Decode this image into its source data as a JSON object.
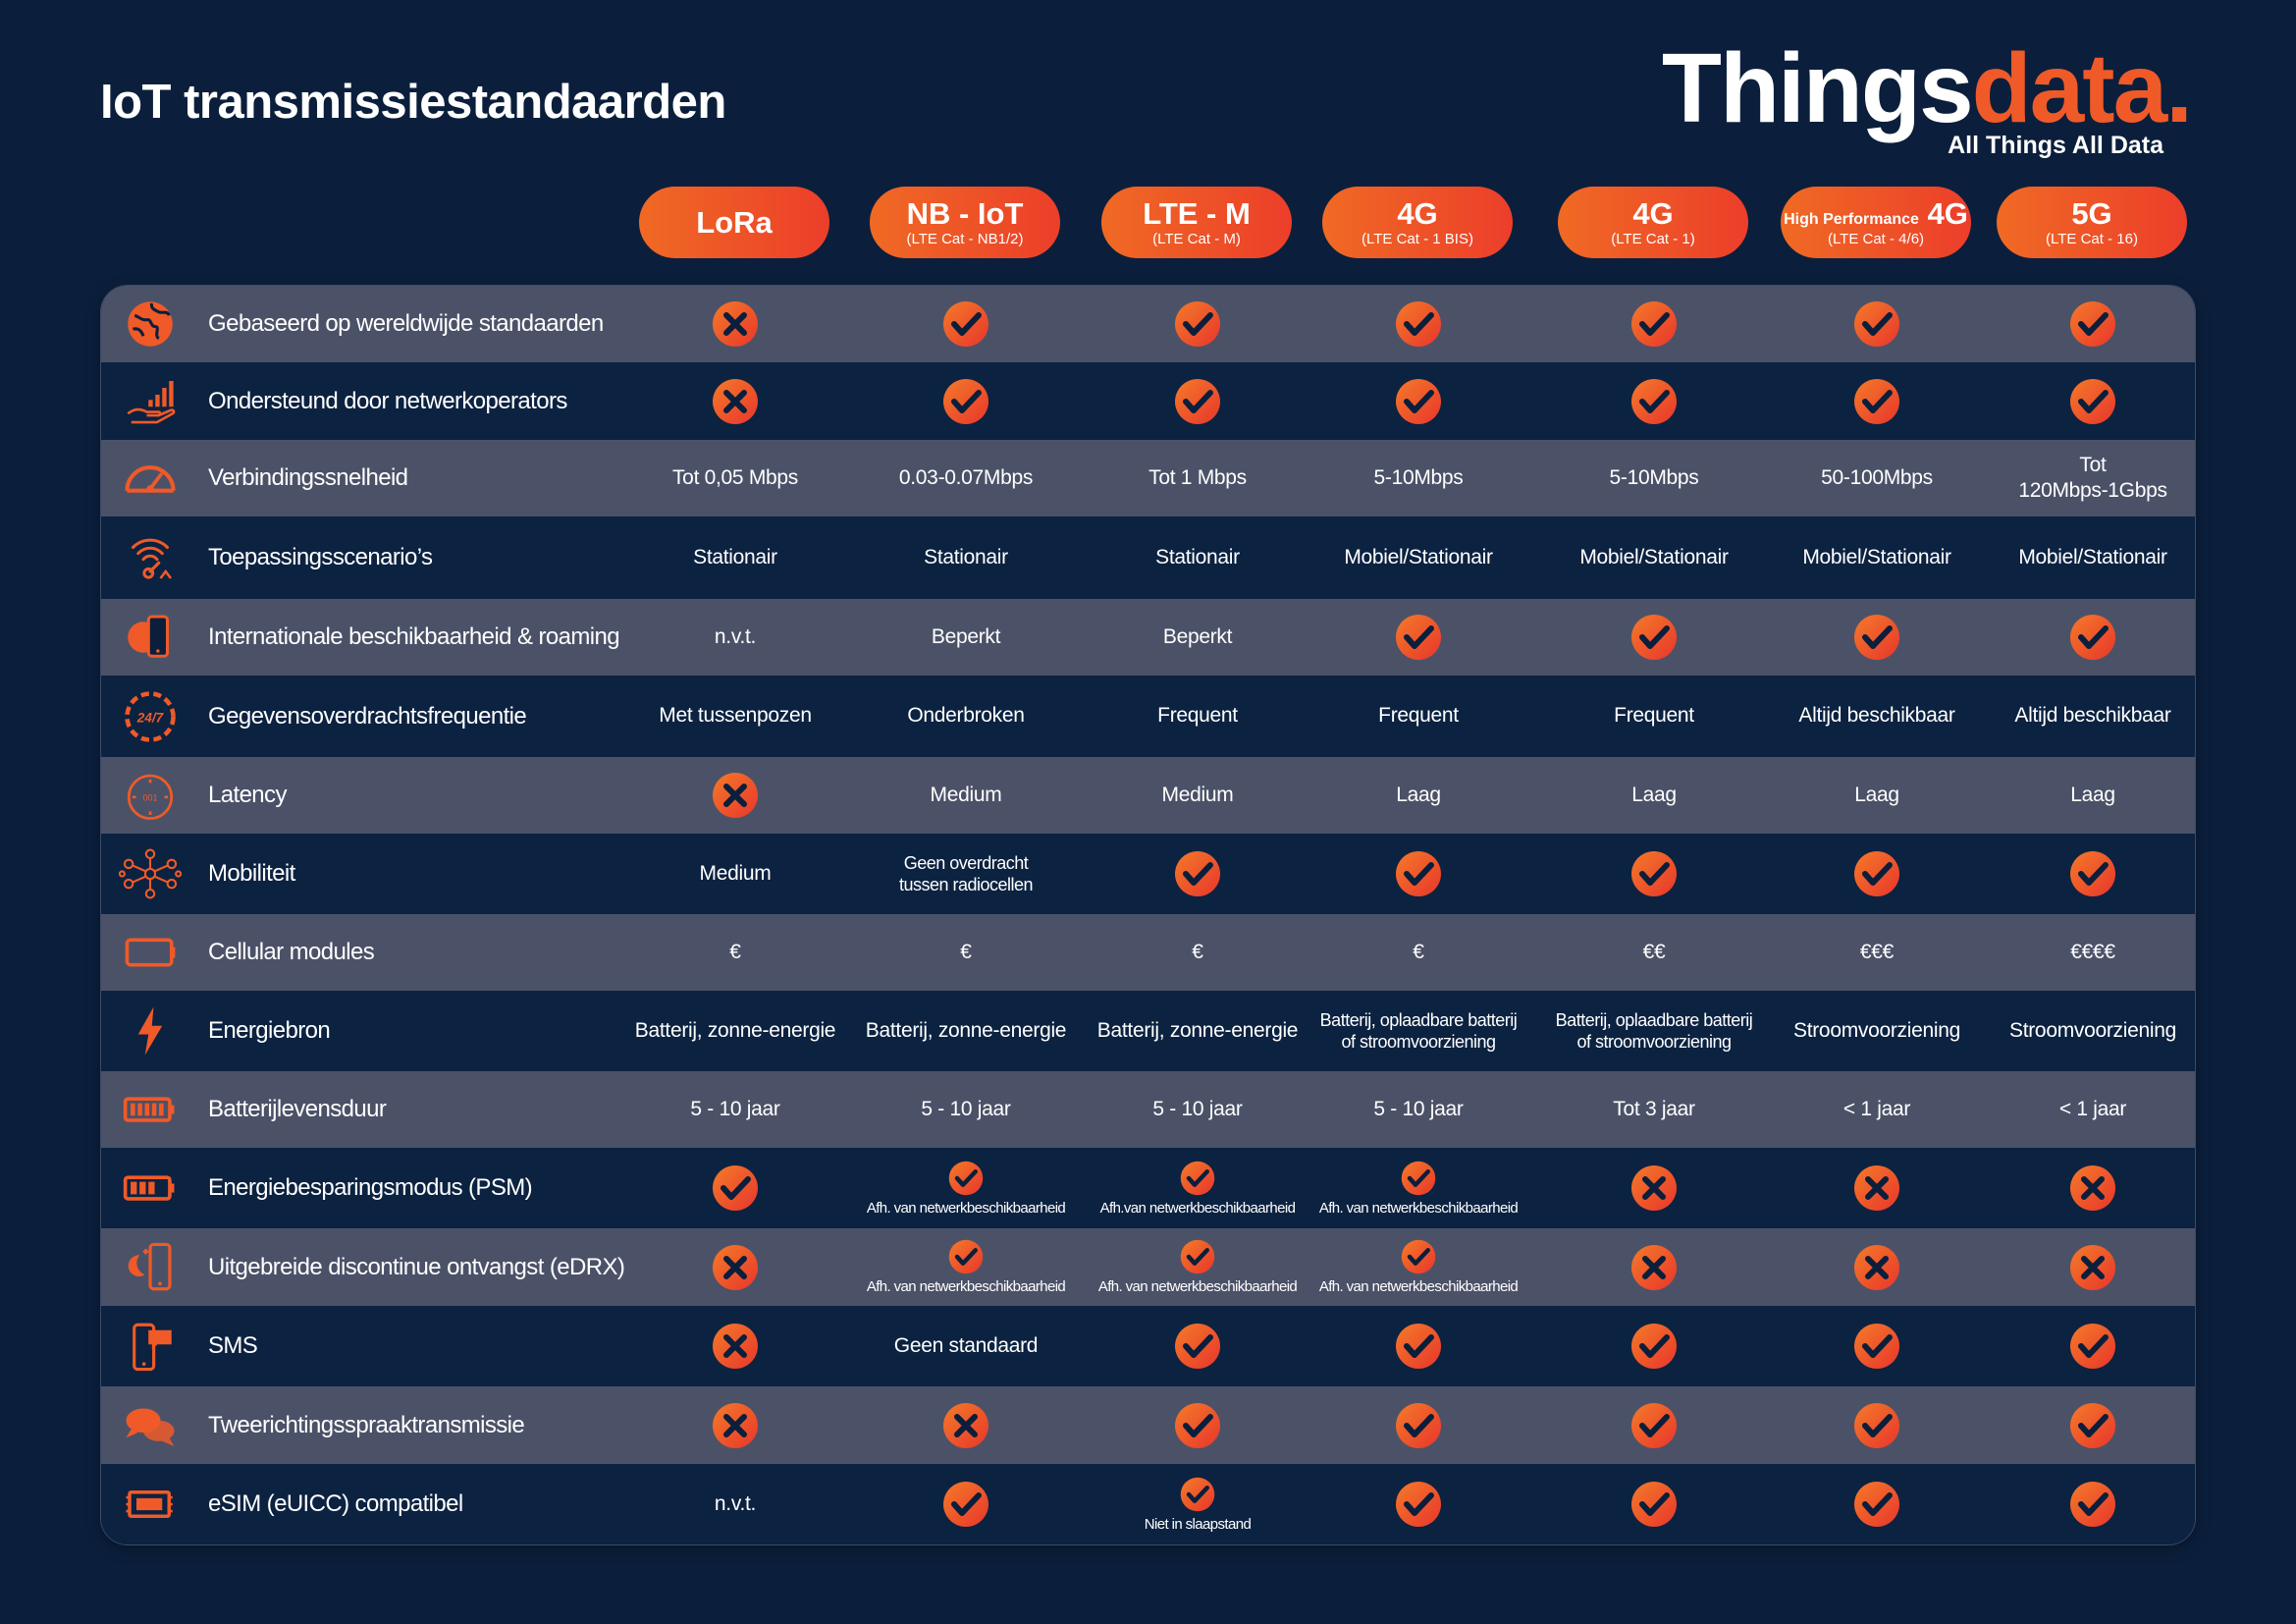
{
  "title": "IoT transmissiestandaarden",
  "logo": {
    "part1": "Things",
    "part2": "data.",
    "tagline": "All Things All Data"
  },
  "colors": {
    "background": "#0b1f3c",
    "accent": "#f05a28",
    "row_alt": "#4b5268",
    "row_plain": "#0c2241"
  },
  "columns": [
    {
      "main": "LoRa",
      "prefix": "",
      "sub": ""
    },
    {
      "main": "NB - IoT",
      "prefix": "",
      "sub": "(LTE Cat - NB1/2)"
    },
    {
      "main": "LTE - M",
      "prefix": "",
      "sub": "(LTE Cat - M)"
    },
    {
      "main": "4G",
      "prefix": "",
      "sub": "(LTE Cat - 1 BIS)"
    },
    {
      "main": "4G",
      "prefix": "",
      "sub": "(LTE Cat - 1)"
    },
    {
      "main": "4G",
      "prefix": "High Performance",
      "sub": "(LTE Cat - 4/6)"
    },
    {
      "main": "5G",
      "prefix": "",
      "sub": "(LTE Cat - 16)"
    }
  ],
  "rows": [
    {
      "label": "Gebaseerd op wereldwijde standaarden",
      "icon": "globe-icon",
      "cells": [
        {
          "mark": "cross"
        },
        {
          "mark": "check"
        },
        {
          "mark": "check"
        },
        {
          "mark": "check"
        },
        {
          "mark": "check"
        },
        {
          "mark": "check"
        },
        {
          "mark": "check"
        }
      ]
    },
    {
      "label": "Ondersteund door netwerkoperators",
      "icon": "signal-hand-icon",
      "cells": [
        {
          "mark": "cross"
        },
        {
          "mark": "check"
        },
        {
          "mark": "check"
        },
        {
          "mark": "check"
        },
        {
          "mark": "check"
        },
        {
          "mark": "check"
        },
        {
          "mark": "check"
        }
      ]
    },
    {
      "label": "Verbindingssnelheid",
      "icon": "speedometer-icon",
      "cells": [
        {
          "text": "Tot 0,05 Mbps"
        },
        {
          "text": "0.03-0.07Mbps"
        },
        {
          "text": "Tot 1 Mbps"
        },
        {
          "text": "5-10Mbps"
        },
        {
          "text": "5-10Mbps"
        },
        {
          "text": "50-100Mbps"
        },
        {
          "text": "Tot\n120Mbps-1Gbps"
        }
      ]
    },
    {
      "label": "Toepassingsscenario’s",
      "icon": "wireless-sensor-icon",
      "cells": [
        {
          "text": "Stationair"
        },
        {
          "text": "Stationair"
        },
        {
          "text": "Stationair"
        },
        {
          "text": "Mobiel/Stationair"
        },
        {
          "text": "Mobiel/Stationair"
        },
        {
          "text": "Mobiel/Stationair"
        },
        {
          "text": "Mobiel/Stationair"
        }
      ]
    },
    {
      "label": "Internationale beschikbaarheid & roaming",
      "icon": "phone-globe-icon",
      "cells": [
        {
          "text": "n.v.t."
        },
        {
          "text": "Beperkt"
        },
        {
          "text": "Beperkt"
        },
        {
          "mark": "check"
        },
        {
          "mark": "check"
        },
        {
          "mark": "check"
        },
        {
          "mark": "check"
        }
      ]
    },
    {
      "label": "Gegevensoverdrachtsfrequentie",
      "icon": "clock-24-7-icon",
      "icon_text": "24/7",
      "cells": [
        {
          "text": "Met tussenpozen"
        },
        {
          "text": "Onderbroken"
        },
        {
          "text": "Frequent"
        },
        {
          "text": "Frequent"
        },
        {
          "text": "Frequent"
        },
        {
          "text": "Altijd beschikbaar"
        },
        {
          "text": "Altijd beschikbaar"
        }
      ]
    },
    {
      "label": "Latency",
      "icon": "stopwatch-icon",
      "icon_text": "001",
      "cells": [
        {
          "mark": "cross"
        },
        {
          "text": "Medium"
        },
        {
          "text": "Medium"
        },
        {
          "text": "Laag"
        },
        {
          "text": "Laag"
        },
        {
          "text": "Laag"
        },
        {
          "text": "Laag"
        }
      ]
    },
    {
      "label": "Mobiliteit",
      "icon": "network-nodes-icon",
      "cells": [
        {
          "text": "Medium"
        },
        {
          "text": "Geen overdracht\ntussen radiocellen",
          "small": true
        },
        {
          "mark": "check"
        },
        {
          "mark": "check"
        },
        {
          "mark": "check"
        },
        {
          "mark": "check"
        },
        {
          "mark": "check"
        }
      ]
    },
    {
      "label": "Cellular modules",
      "icon": "module-icon",
      "cells": [
        {
          "text": "€"
        },
        {
          "text": "€"
        },
        {
          "text": "€"
        },
        {
          "text": "€"
        },
        {
          "text": "€€"
        },
        {
          "text": "€€€"
        },
        {
          "text": "€€€€"
        }
      ]
    },
    {
      "label": "Energiebron",
      "icon": "lightning-icon",
      "cells": [
        {
          "text": "Batterij, zonne-energie"
        },
        {
          "text": "Batterij, zonne-energie"
        },
        {
          "text": "Batterij, zonne-energie"
        },
        {
          "text": "Batterij, oplaadbare batterij\nof stroomvoorziening",
          "small": true
        },
        {
          "text": "Batterij, oplaadbare batterij\nof stroomvoorziening",
          "small": true
        },
        {
          "text": "Stroomvoorziening"
        },
        {
          "text": "Stroomvoorziening"
        }
      ]
    },
    {
      "label": "Batterijlevensduur",
      "icon": "battery-full-icon",
      "cells": [
        {
          "text": "5 - 10 jaar"
        },
        {
          "text": "5 - 10 jaar"
        },
        {
          "text": "5 - 10 jaar"
        },
        {
          "text": "5 - 10 jaar"
        },
        {
          "text": "Tot 3 jaar"
        },
        {
          "text": "< 1 jaar"
        },
        {
          "text": "< 1 jaar"
        }
      ]
    },
    {
      "label": "Energiebesparingsmodus (PSM)",
      "icon": "battery-half-icon",
      "cells": [
        {
          "mark": "check"
        },
        {
          "mark": "check",
          "note": "Afh. van netwerkbeschikbaarheid"
        },
        {
          "mark": "check",
          "note": "Afh.van netwerkbeschikbaarheid"
        },
        {
          "mark": "check",
          "note": "Afh. van netwerkbeschikbaarheid"
        },
        {
          "mark": "cross"
        },
        {
          "mark": "cross"
        },
        {
          "mark": "cross"
        }
      ]
    },
    {
      "label": "Uitgebreide discontinue ontvangst (eDRX)",
      "icon": "phone-sleep-icon",
      "cells": [
        {
          "mark": "cross"
        },
        {
          "mark": "check",
          "note": "Afh. van netwerkbeschikbaarheid"
        },
        {
          "mark": "check",
          "note": "Afh. van netwerkbeschikbaarheid"
        },
        {
          "mark": "check",
          "note": "Afh. van netwerkbeschikbaarheid"
        },
        {
          "mark": "cross"
        },
        {
          "mark": "cross"
        },
        {
          "mark": "cross"
        }
      ]
    },
    {
      "label": "SMS",
      "icon": "phone-message-icon",
      "cells": [
        {
          "mark": "cross"
        },
        {
          "text": "Geen standaard"
        },
        {
          "mark": "check"
        },
        {
          "mark": "check"
        },
        {
          "mark": "check"
        },
        {
          "mark": "check"
        },
        {
          "mark": "check"
        }
      ]
    },
    {
      "label": "Tweerichtingsspraaktransmissie",
      "icon": "speech-bubbles-icon",
      "cells": [
        {
          "mark": "cross"
        },
        {
          "mark": "cross"
        },
        {
          "mark": "check"
        },
        {
          "mark": "check"
        },
        {
          "mark": "check"
        },
        {
          "mark": "check"
        },
        {
          "mark": "check"
        }
      ]
    },
    {
      "label": "eSIM (eUICC) compatibel",
      "icon": "sim-chip-icon",
      "cells": [
        {
          "text": "n.v.t."
        },
        {
          "mark": "check"
        },
        {
          "mark": "check",
          "note": "Niet in slaapstand"
        },
        {
          "mark": "check"
        },
        {
          "mark": "check"
        },
        {
          "mark": "check"
        },
        {
          "mark": "check"
        }
      ]
    }
  ]
}
